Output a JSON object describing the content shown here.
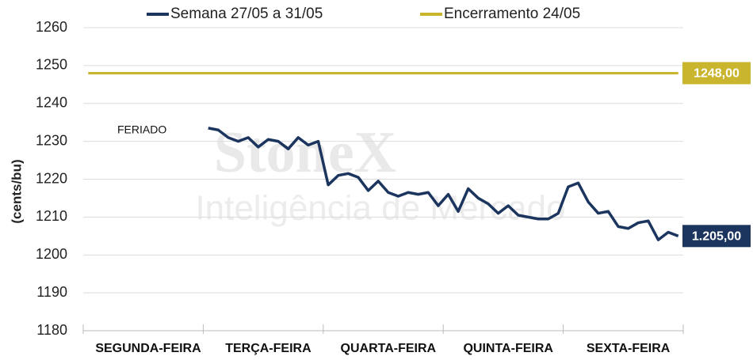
{
  "chart_data": {
    "type": "line",
    "y_label": "(cents/bu)",
    "annotation": "FERIADO",
    "watermark": [
      "StoneX",
      "Inteligência de Mercado"
    ],
    "categories": [
      null,
      null,
      null,
      null,
      null,
      null,
      "SEGUNDA-FEIRA",
      null,
      null,
      null,
      null,
      null,
      null,
      null,
      null,
      null,
      null,
      null,
      "TERÇA-FEIRA",
      null,
      null,
      null,
      null,
      null,
      null,
      null,
      null,
      null,
      null,
      null,
      "QUARTA-FEIRA",
      null,
      null,
      null,
      null,
      null,
      null,
      null,
      null,
      null,
      null,
      null,
      "QUINTA-FEIRA",
      null,
      null,
      null,
      null,
      null,
      null,
      null,
      null,
      null,
      null,
      null,
      "SEXTA-FEIRA",
      null,
      null,
      null,
      null,
      null
    ],
    "series": [
      {
        "name": "Semana 27/05 a 31/05",
        "color": "#1b355e",
        "values": [
          null,
          null,
          null,
          null,
          null,
          null,
          null,
          null,
          null,
          null,
          null,
          null,
          1233.5,
          1233,
          1231,
          1230,
          1231,
          1228.5,
          1230.5,
          1230,
          1228,
          1231,
          1229,
          1230,
          1218.5,
          1221,
          1221.5,
          1220.5,
          1217,
          1219.5,
          1216.5,
          1215.5,
          1216.5,
          1216,
          1216.5,
          1213,
          1216,
          1211.5,
          1217.5,
          1215,
          1213.5,
          1211,
          1213,
          1210.5,
          1210,
          1209.5,
          1209.5,
          1211,
          1218,
          1219,
          1214,
          1211,
          1211.5,
          1207.5,
          1207,
          1208.5,
          1209,
          1204,
          1206,
          1205
        ],
        "value_labels": [
          null,
          null,
          null,
          null,
          null,
          null,
          null,
          null,
          null,
          null,
          null,
          null,
          null,
          null,
          null,
          null,
          null,
          null,
          null,
          null,
          null,
          null,
          null,
          null,
          null,
          null,
          null,
          null,
          null,
          null,
          null,
          null,
          null,
          null,
          null,
          null,
          null,
          null,
          null,
          null,
          null,
          null,
          null,
          null,
          null,
          null,
          null,
          null,
          null,
          null,
          null,
          null,
          null,
          null,
          null,
          null,
          null,
          null,
          null,
          "1.205,00"
        ]
      },
      {
        "name": "Encerramento 24/05",
        "color": "#c9b52e",
        "values": [
          1248,
          1248,
          1248,
          1248,
          1248,
          1248,
          1248,
          1248,
          1248,
          1248,
          1248,
          1248,
          1248,
          1248,
          1248,
          1248,
          1248,
          1248,
          1248,
          1248,
          1248,
          1248,
          1248,
          1248,
          1248,
          1248,
          1248,
          1248,
          1248,
          1248,
          1248,
          1248,
          1248,
          1248,
          1248,
          1248,
          1248,
          1248,
          1248,
          1248,
          1248,
          1248,
          1248,
          1248,
          1248,
          1248,
          1248,
          1248,
          1248,
          1248,
          1248,
          1248,
          1248,
          1248,
          1248,
          1248,
          1248,
          1248,
          1248,
          1248
        ],
        "value_labels": [
          null,
          null,
          null,
          null,
          null,
          null,
          null,
          null,
          null,
          null,
          null,
          null,
          null,
          null,
          null,
          null,
          null,
          null,
          null,
          null,
          null,
          null,
          null,
          null,
          null,
          null,
          null,
          null,
          null,
          null,
          null,
          null,
          null,
          null,
          null,
          null,
          null,
          null,
          null,
          null,
          null,
          null,
          null,
          null,
          null,
          null,
          null,
          null,
          null,
          null,
          null,
          null,
          null,
          null,
          null,
          null,
          null,
          null,
          null,
          "1248,00"
        ]
      }
    ],
    "ylim": [
      1180,
      1260
    ],
    "yticks": [
      1180,
      1190,
      1200,
      1210,
      1220,
      1230,
      1240,
      1250,
      1260
    ],
    "grid": true
  }
}
